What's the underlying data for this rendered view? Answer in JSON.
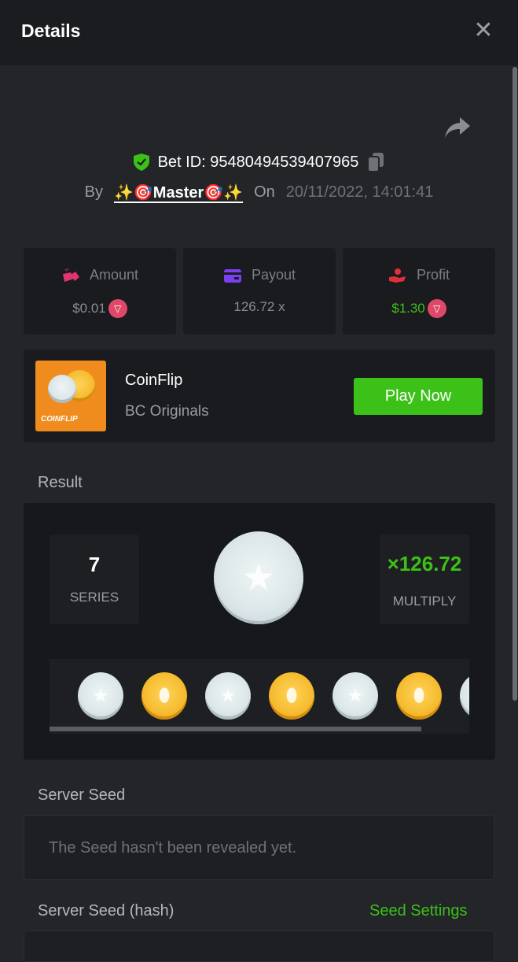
{
  "header": {
    "title": "Details",
    "close_icon": "close-icon"
  },
  "bet": {
    "label": "Bet ID:",
    "id": "95480494539407965",
    "by_label": "By",
    "user": "✨🎯Master🎯✨",
    "on_label": "On",
    "date": "20/11/2022, 14:01:41"
  },
  "stats": [
    {
      "label": "Amount",
      "value": "$0.01",
      "icon": "amount-icon",
      "color": "#e0356f",
      "currency_icon": "trx-icon"
    },
    {
      "label": "Payout",
      "value": "126.72 x",
      "icon": "payout-card-icon",
      "color": "#7b3ff2"
    },
    {
      "label": "Profit",
      "value": "$1.30",
      "icon": "profit-hand-icon",
      "color": "#e0303a",
      "value_color": "#3bc117",
      "currency_icon": "trx-icon"
    }
  ],
  "game": {
    "thumb_label": "COINFLIP",
    "name": "CoinFlip",
    "provider": "BC Originals",
    "play_label": "Play Now"
  },
  "result": {
    "section_label": "Result",
    "series_value": "7",
    "series_label": "SERIES",
    "multiply_value": "×126.72",
    "multiply_label": "MULTIPLY",
    "current_coin": "silver",
    "history": [
      "silver",
      "gold",
      "silver",
      "gold",
      "silver",
      "gold",
      "silver"
    ]
  },
  "server_seed": {
    "label": "Server Seed",
    "text": "The Seed hasn't been revealed yet."
  },
  "server_seed_hash": {
    "label": "Server Seed (hash)",
    "settings_link": "Seed Settings"
  },
  "colors": {
    "accent_green": "#3bc117",
    "background": "#232529"
  }
}
